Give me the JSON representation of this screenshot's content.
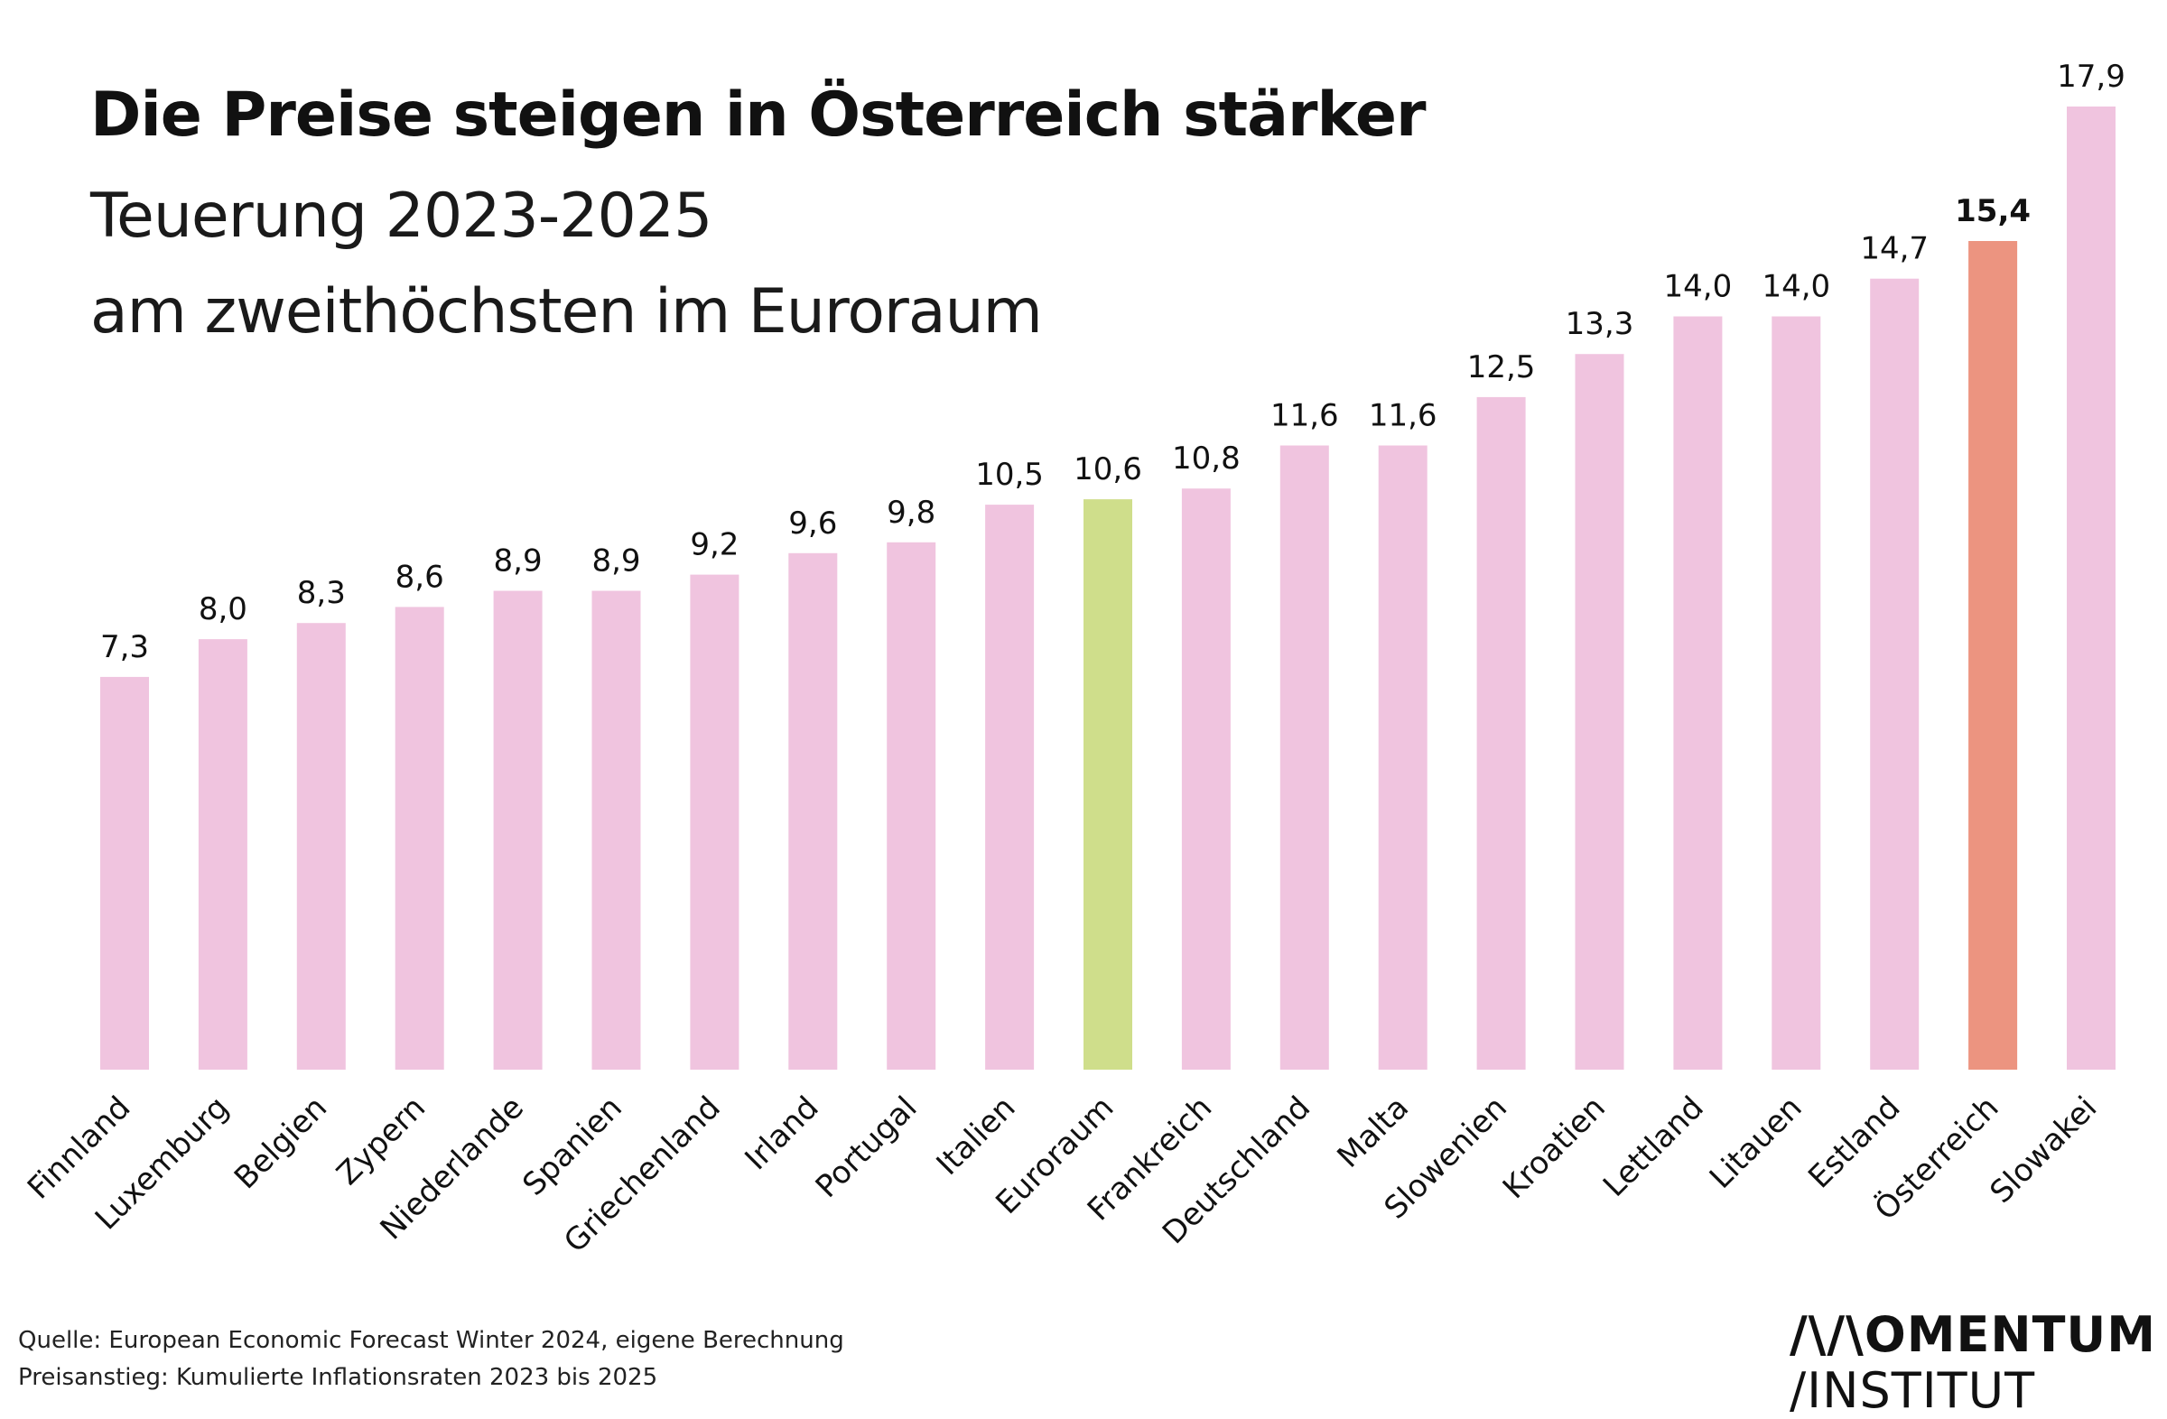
{
  "chart_data": {
    "type": "bar",
    "title": "Die Preise steigen in Österreich stärker",
    "subtitle": [
      "Teuerung 2023-2025",
      "am zweithöchsten im Euroraum"
    ],
    "categories": [
      "Finnland",
      "Luxemburg",
      "Belgien",
      "Zypern",
      "Niederlande",
      "Spanien",
      "Griechenland",
      "Irland",
      "Portugal",
      "Italien",
      "Euroraum",
      "Frankreich",
      "Deutschland",
      "Malta",
      "Slowenien",
      "Kroatien",
      "Lettland",
      "Litauen",
      "Estland",
      "Österreich",
      "Slowakei"
    ],
    "values": [
      7.3,
      8.0,
      8.3,
      8.6,
      8.9,
      8.9,
      9.2,
      9.6,
      9.8,
      10.5,
      10.6,
      10.8,
      11.6,
      11.6,
      12.5,
      13.3,
      14.0,
      14.0,
      14.7,
      15.4,
      17.9
    ],
    "value_labels": [
      "7,3",
      "8,0",
      "8,3",
      "8,6",
      "8,9",
      "8,9",
      "9,2",
      "9,6",
      "9,8",
      "10,5",
      "10,6",
      "10,8",
      "11,6",
      "11,6",
      "12,5",
      "13,3",
      "14,0",
      "14,0",
      "14,7",
      "15,4",
      "17,9"
    ],
    "bar_colors": [
      "#f0c4df",
      "#f0c4df",
      "#f0c4df",
      "#f0c4df",
      "#f0c4df",
      "#f0c4df",
      "#f0c4df",
      "#f0c4df",
      "#f0c4df",
      "#f0c4df",
      "#cfde8b",
      "#f0c4df",
      "#f0c4df",
      "#f0c4df",
      "#f0c4df",
      "#f0c4df",
      "#f0c4df",
      "#f0c4df",
      "#f0c4df",
      "#ec9480",
      "#f0c4df"
    ],
    "bold_value_labels": [
      "Österreich"
    ],
    "xlabel": "",
    "ylabel": "",
    "ylim": [
      0,
      17.9
    ],
    "grid": false,
    "legend": "none"
  },
  "footer": {
    "source": "Quelle: European Economic Forecast Winter 2024, eigene Berechnung",
    "note": "Preisanstieg: Kumulierte Inflationsraten 2023 bis 2025"
  },
  "logo": {
    "line1": "/\\/\\OMENTUM",
    "line2": "/INSTITUT"
  }
}
